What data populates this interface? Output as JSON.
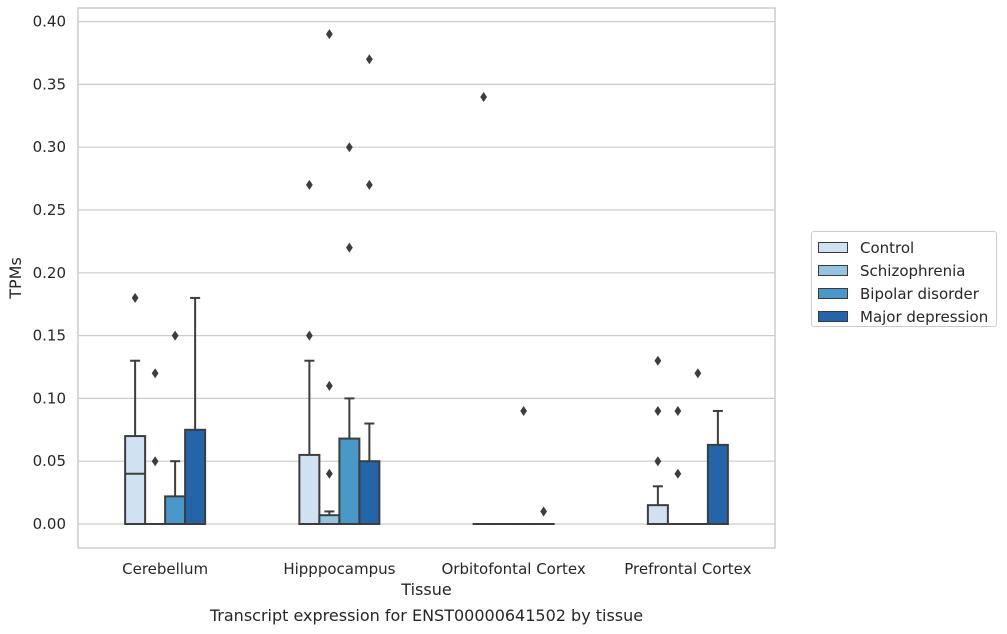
{
  "caption": "Transcript expression for ENST00000641502 by tissue",
  "chart_data": {
    "type": "box",
    "xlabel": "Tissue",
    "ylabel": "TPMs",
    "ylim": [
      -0.019,
      0.41
    ],
    "yticks": [
      "0.00",
      "0.05",
      "0.10",
      "0.15",
      "0.20",
      "0.25",
      "0.30",
      "0.35",
      "0.40"
    ],
    "grid": "horizontal",
    "legend_position": "right",
    "categories": [
      "Cerebellum",
      "Hipppocampus",
      "Orbitofontal Cortex",
      "Prefrontal Cortex"
    ],
    "series": [
      {
        "name": "Control",
        "color": "#d0e1f2",
        "boxes": [
          {
            "q1": 0.0,
            "median": 0.04,
            "q3": 0.07,
            "whisker_low": 0.0,
            "whisker_high": 0.13,
            "outliers": [
              0.18
            ]
          },
          {
            "q1": 0.0,
            "median": 0.0,
            "q3": 0.055,
            "whisker_low": 0.0,
            "whisker_high": 0.13,
            "outliers": [
              0.15,
              0.27
            ]
          },
          {
            "q1": 0.0,
            "median": 0.0,
            "q3": 0.0,
            "whisker_low": 0.0,
            "whisker_high": 0.0,
            "outliers": [
              0.34
            ]
          },
          {
            "q1": 0.0,
            "median": 0.0,
            "q3": 0.015,
            "whisker_low": 0.0,
            "whisker_high": 0.03,
            "outliers": [
              0.05,
              0.09,
              0.13
            ]
          }
        ]
      },
      {
        "name": "Schizophrenia",
        "color": "#94c4df",
        "boxes": [
          {
            "q1": 0.0,
            "median": 0.0,
            "q3": 0.0,
            "whisker_low": 0.0,
            "whisker_high": 0.0,
            "outliers": [
              0.05,
              0.12
            ]
          },
          {
            "q1": 0.0,
            "median": 0.0,
            "q3": 0.007,
            "whisker_low": 0.0,
            "whisker_high": 0.01,
            "outliers": [
              0.04,
              0.11,
              0.39
            ]
          },
          {
            "q1": 0.0,
            "median": 0.0,
            "q3": 0.0,
            "whisker_low": 0.0,
            "whisker_high": 0.0,
            "outliers": []
          },
          {
            "q1": 0.0,
            "median": 0.0,
            "q3": 0.0,
            "whisker_low": 0.0,
            "whisker_high": 0.0,
            "outliers": [
              0.04,
              0.09
            ]
          }
        ]
      },
      {
        "name": "Bipolar disorder",
        "color": "#4a98c9",
        "boxes": [
          {
            "q1": 0.0,
            "median": 0.0,
            "q3": 0.022,
            "whisker_low": 0.0,
            "whisker_high": 0.05,
            "outliers": [
              0.15
            ]
          },
          {
            "q1": 0.0,
            "median": 0.0,
            "q3": 0.068,
            "whisker_low": 0.0,
            "whisker_high": 0.1,
            "outliers": [
              0.22,
              0.3
            ]
          },
          {
            "q1": 0.0,
            "median": 0.0,
            "q3": 0.0,
            "whisker_low": 0.0,
            "whisker_high": 0.0,
            "outliers": [
              0.09
            ]
          },
          {
            "q1": 0.0,
            "median": 0.0,
            "q3": 0.0,
            "whisker_low": 0.0,
            "whisker_high": 0.0,
            "outliers": [
              0.12
            ]
          }
        ]
      },
      {
        "name": "Major depression",
        "color": "#2464a8",
        "boxes": [
          {
            "q1": 0.0,
            "median": 0.0,
            "q3": 0.075,
            "whisker_low": 0.0,
            "whisker_high": 0.18,
            "outliers": []
          },
          {
            "q1": 0.0,
            "median": 0.0,
            "q3": 0.05,
            "whisker_low": 0.0,
            "whisker_high": 0.08,
            "outliers": [
              0.27,
              0.37
            ]
          },
          {
            "q1": 0.0,
            "median": 0.0,
            "q3": 0.0,
            "whisker_low": 0.0,
            "whisker_high": 0.0,
            "outliers": [
              0.01
            ]
          },
          {
            "q1": 0.0,
            "median": 0.0,
            "q3": 0.063,
            "whisker_low": 0.0,
            "whisker_high": 0.09,
            "outliers": []
          }
        ]
      }
    ]
  }
}
